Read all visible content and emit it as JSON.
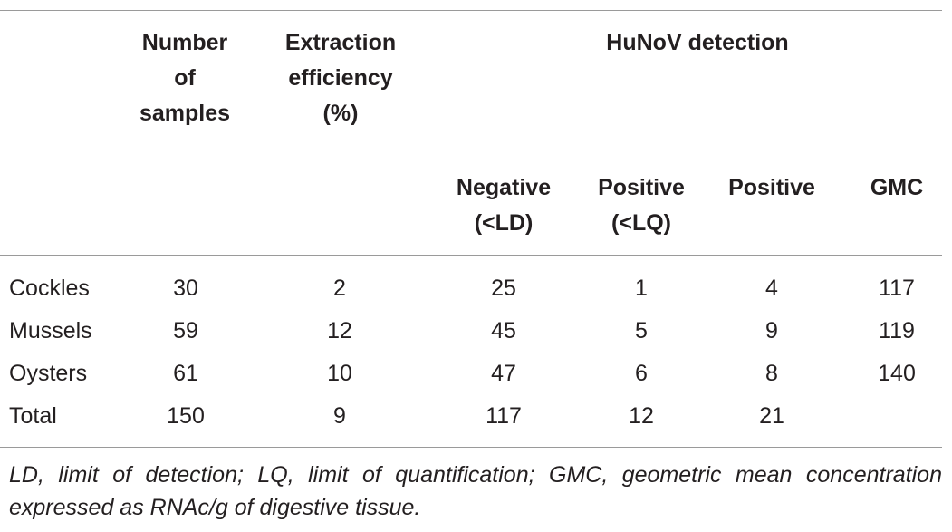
{
  "header": {
    "number_of_samples": [
      "Number",
      "of",
      "samples"
    ],
    "extraction_efficiency": [
      "Extraction",
      "efficiency",
      "(%)"
    ],
    "hunov_detection": "HuNoV detection",
    "negative": [
      "Negative",
      "(<LD)"
    ],
    "positive_lq": [
      "Positive",
      "(<LQ)"
    ],
    "positive": "Positive",
    "gmc": "GMC"
  },
  "rows": [
    {
      "label": "Cockles",
      "samples": "30",
      "efficiency": "2",
      "negative": "25",
      "positive_lq": "1",
      "positive": "4",
      "gmc": "117"
    },
    {
      "label": "Mussels",
      "samples": "59",
      "efficiency": "12",
      "negative": "45",
      "positive_lq": "5",
      "positive": "9",
      "gmc": "119"
    },
    {
      "label": "Oysters",
      "samples": "61",
      "efficiency": "10",
      "negative": "47",
      "positive_lq": "6",
      "positive": "8",
      "gmc": "140"
    },
    {
      "label": "Total",
      "samples": "150",
      "efficiency": "9",
      "negative": "117",
      "positive_lq": "12",
      "positive": "21",
      "gmc": ""
    }
  ],
  "footnote": "LD, limit of detection; LQ, limit of quantification; GMC, geometric mean concentration expressed as RNAc/g of digestive tissue."
}
